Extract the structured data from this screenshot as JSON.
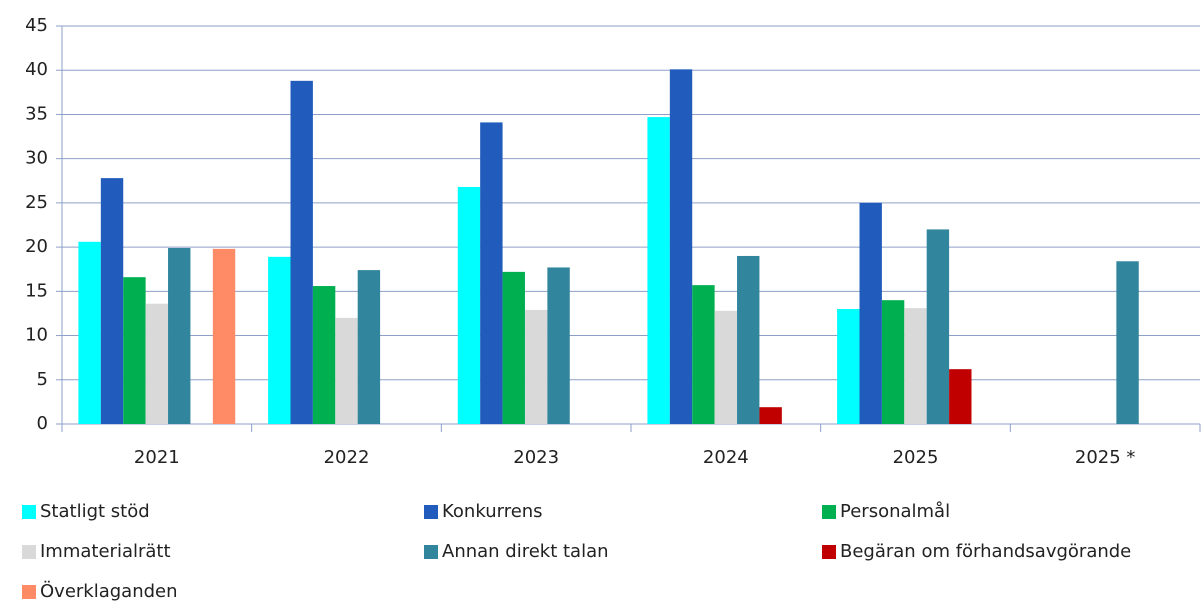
{
  "chart_data": {
    "type": "bar",
    "categories": [
      "2021",
      "2022",
      "2023",
      "2024",
      "2025",
      "2025 *"
    ],
    "series": [
      {
        "name": "Statligt stöd",
        "color": "#00ffff",
        "values": [
          20.6,
          18.9,
          26.8,
          34.7,
          13,
          null
        ]
      },
      {
        "name": "Konkurrens",
        "color": "#215cbc",
        "values": [
          27.8,
          38.8,
          34.1,
          40.1,
          25,
          null
        ]
      },
      {
        "name": "Personalmål",
        "color": "#00b050",
        "values": [
          16.6,
          15.6,
          17.2,
          15.7,
          14,
          null
        ]
      },
      {
        "name": "Immaterialrätt",
        "color": "#d9d9d9",
        "values": [
          13.6,
          12,
          12.9,
          12.8,
          13.1,
          null
        ]
      },
      {
        "name": "Annan direkt talan",
        "color": "#31869e",
        "values": [
          19.9,
          17.4,
          17.7,
          19,
          22,
          18.4
        ]
      },
      {
        "name": "Begäran om förhandsavgörande",
        "color": "#c00000",
        "values": [
          null,
          null,
          null,
          1.9,
          6.2,
          null
        ]
      },
      {
        "name": "Överklaganden",
        "color": "#ff8a66",
        "values": [
          19.8,
          null,
          null,
          null,
          null,
          null
        ]
      }
    ],
    "ylim": [
      0,
      45
    ],
    "yticks": [
      0,
      5,
      10,
      15,
      20,
      25,
      30,
      35,
      40,
      45
    ],
    "grid": true
  }
}
